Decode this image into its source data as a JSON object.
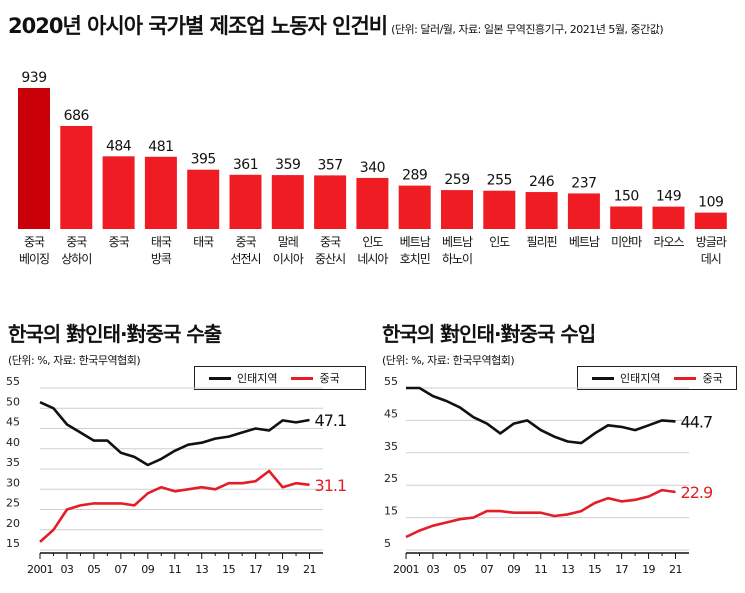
{
  "header": {
    "title": "2020년 아시아 국가별 제조업 노동자 인건비",
    "subtitle": "(단위: 달러/월, 자료: 일본 무역진흥기구, 2021년 5월, 중간값)"
  },
  "chart_data": [
    {
      "type": "bar",
      "title": "2020년 아시아 국가별 제조업 노동자 인건비",
      "unit": "달러/월",
      "source": "일본 무역진흥기구, 2021년 5월, 중간값",
      "categories": [
        [
          "중국",
          "베이징"
        ],
        [
          "중국",
          "상하이"
        ],
        [
          "중국"
        ],
        [
          "태국",
          "방콕"
        ],
        [
          "태국"
        ],
        [
          "중국",
          "선전시"
        ],
        [
          "말레",
          "이시아"
        ],
        [
          "중국",
          "중산시"
        ],
        [
          "인도",
          "네시아"
        ],
        [
          "베트남",
          "호치민"
        ],
        [
          "베트남",
          "하노이"
        ],
        [
          "인도"
        ],
        [
          "필리핀"
        ],
        [
          "베트남"
        ],
        [
          "미얀마"
        ],
        [
          "라오스"
        ],
        [
          "방글라",
          "데시"
        ]
      ],
      "values": [
        939,
        686,
        484,
        481,
        395,
        361,
        359,
        357,
        340,
        289,
        259,
        255,
        246,
        237,
        150,
        149,
        109
      ],
      "colors": {
        "highlight": "#c90007",
        "bar": "#ef1c24"
      }
    },
    {
      "type": "line",
      "title": "한국의 對인태·對중국 수출",
      "source": "(단위: %, 자료: 한국무역협회)",
      "yticks": [
        15,
        20,
        25,
        30,
        35,
        40,
        45,
        50,
        55
      ],
      "ylim": [
        15,
        55
      ],
      "xlim": [
        2001,
        2022
      ],
      "xticks": [
        "2001",
        "03",
        "05",
        "07",
        "09",
        "11",
        "13",
        "15",
        "17",
        "19",
        "21"
      ],
      "series": [
        {
          "name": "인태지역",
          "color": "#111111",
          "x": [
            2001,
            2002,
            2003,
            2004,
            2005,
            2006,
            2007,
            2008,
            2009,
            2010,
            2011,
            2012,
            2013,
            2014,
            2015,
            2016,
            2017,
            2018,
            2019,
            2020,
            2021
          ],
          "values": [
            51.5,
            50,
            46,
            44,
            42,
            42,
            39,
            38,
            36,
            37.5,
            39.5,
            41,
            41.5,
            42.5,
            43,
            44,
            45,
            44.5,
            47,
            46.5,
            47.1
          ],
          "end_label": "47.1"
        },
        {
          "name": "중국",
          "color": "#e41e26",
          "x": [
            2001,
            2002,
            2003,
            2004,
            2005,
            2006,
            2007,
            2008,
            2009,
            2010,
            2011,
            2012,
            2013,
            2014,
            2015,
            2016,
            2017,
            2018,
            2019,
            2020,
            2021
          ],
          "values": [
            17,
            20,
            25,
            26,
            26.5,
            26.5,
            26.5,
            26,
            29,
            30.5,
            29.5,
            30,
            30.5,
            30,
            31.5,
            31.5,
            32,
            34.5,
            30.5,
            31.5,
            31.1
          ],
          "end_label": "31.1"
        }
      ]
    },
    {
      "type": "line",
      "title": "한국의 對인태·對중국 수입",
      "source": "(단위: %, 자료: 한국무역협회)",
      "yticks": [
        5,
        15,
        25,
        35,
        45,
        55
      ],
      "ylim": [
        5,
        55
      ],
      "xlim": [
        2001,
        2022
      ],
      "xticks": [
        "2001",
        "03",
        "05",
        "07",
        "09",
        "11",
        "13",
        "15",
        "17",
        "19",
        "21"
      ],
      "series": [
        {
          "name": "인태지역",
          "color": "#111111",
          "x": [
            2001,
            2002,
            2003,
            2004,
            2005,
            2006,
            2007,
            2008,
            2009,
            2010,
            2011,
            2012,
            2013,
            2014,
            2015,
            2016,
            2017,
            2018,
            2019,
            2020,
            2021
          ],
          "values": [
            55,
            55,
            52.5,
            51,
            49,
            46,
            44,
            41,
            44,
            45,
            42,
            40,
            38.5,
            38,
            41,
            43.5,
            43,
            42,
            43.5,
            45,
            44.7
          ],
          "end_label": "44.7"
        },
        {
          "name": "중국",
          "color": "#e41e26",
          "x": [
            2001,
            2002,
            2003,
            2004,
            2005,
            2006,
            2007,
            2008,
            2009,
            2010,
            2011,
            2012,
            2013,
            2014,
            2015,
            2016,
            2017,
            2018,
            2019,
            2020,
            2021
          ],
          "values": [
            9,
            11,
            12.5,
            13.5,
            14.5,
            15,
            17,
            17,
            16.5,
            16.5,
            16.5,
            15.5,
            16,
            17,
            19.5,
            21,
            20,
            20.5,
            21.5,
            23.5,
            22.9
          ],
          "end_label": "22.9"
        }
      ]
    }
  ]
}
